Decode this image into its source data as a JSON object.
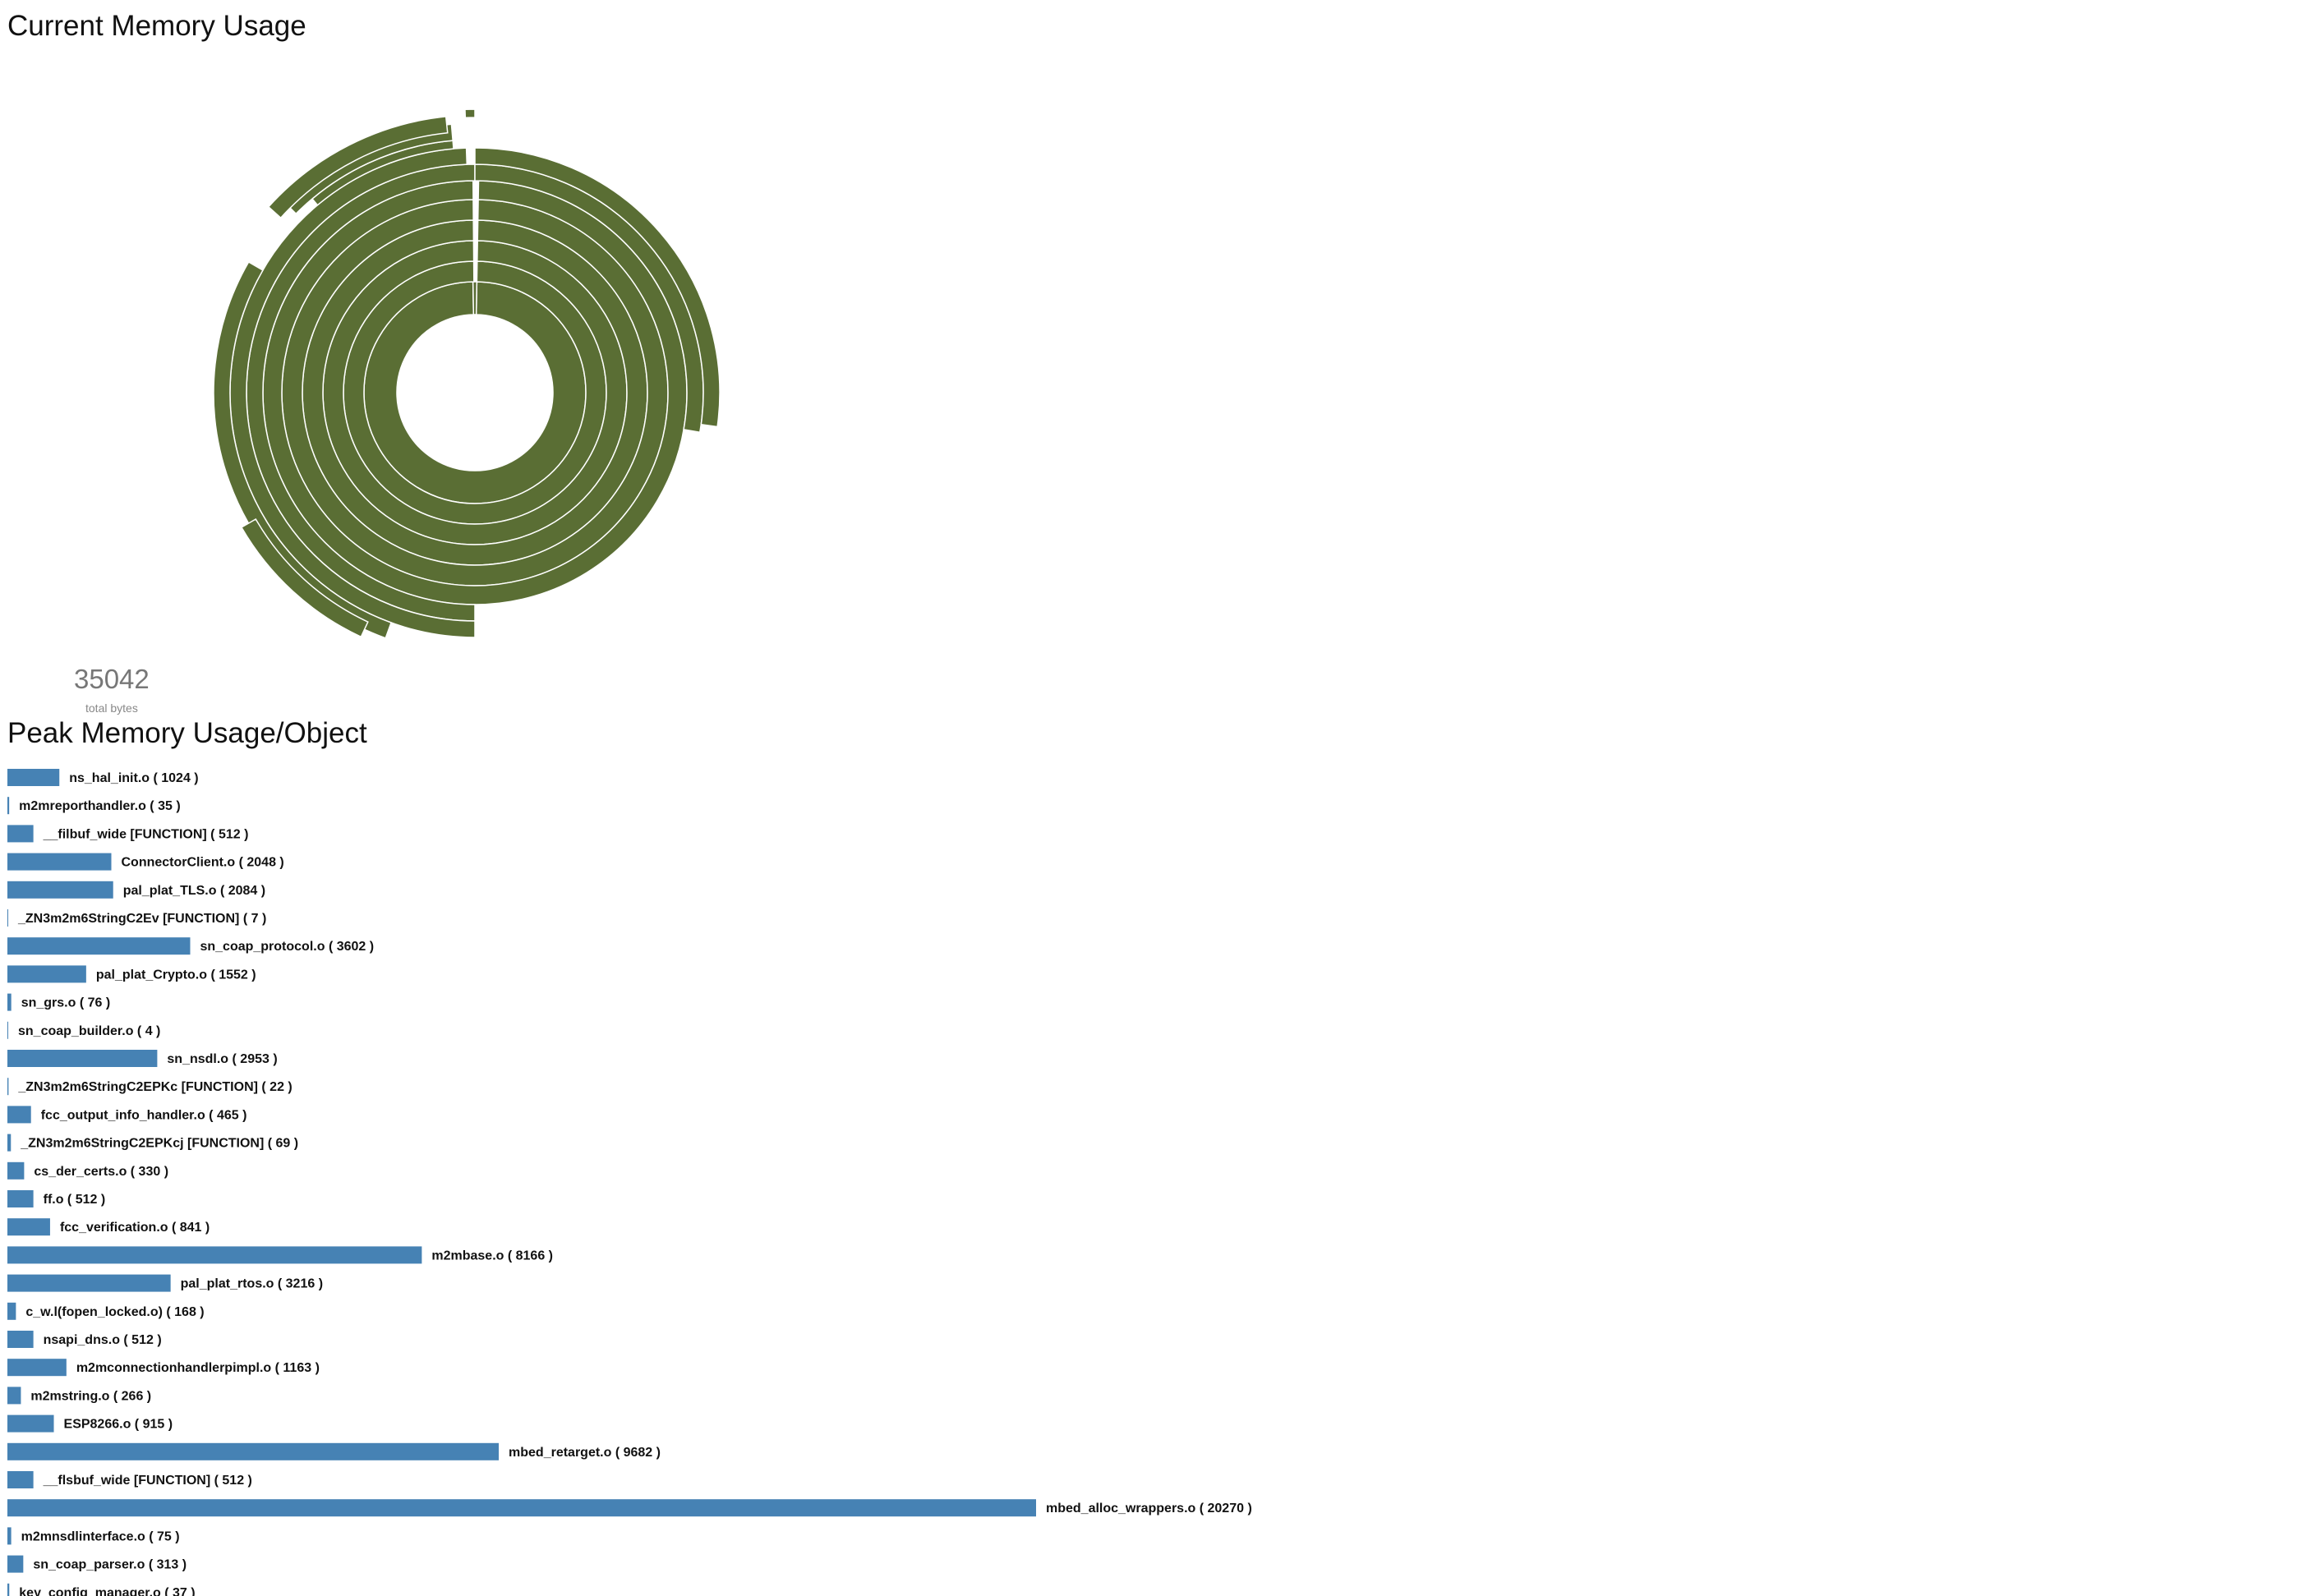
{
  "sections": {
    "current_title": "Current Memory Usage",
    "peak_title": "Peak Memory Usage/Object"
  },
  "summary": {
    "total_value": "35042",
    "total_label": "total bytes"
  },
  "colors": {
    "sunburst_fill": "#5a6e34",
    "bar_fill": "#4682b4"
  },
  "chart_data": [
    {
      "type": "sunburst",
      "title": "Current Memory Usage",
      "total": 35042,
      "note": "arc labels not printed"
    },
    {
      "type": "bar",
      "orientation": "horizontal",
      "title": "Peak Memory Usage/Object",
      "categories": [
        "ns_hal_init.o",
        "m2mreporthandler.o",
        "__filbuf_wide [FUNCTION]",
        "ConnectorClient.o",
        "pal_plat_TLS.o",
        "_ZN3m2m6StringC2Ev [FUNCTION]",
        "sn_coap_protocol.o",
        "pal_plat_Crypto.o",
        "sn_grs.o",
        "sn_coap_builder.o",
        "sn_nsdl.o",
        "_ZN3m2m6StringC2EPKc [FUNCTION]",
        "fcc_output_info_handler.o",
        "_ZN3m2m6StringC2EPKcj [FUNCTION]",
        "cs_der_certs.o",
        "ff.o",
        "fcc_verification.o",
        "m2mbase.o",
        "pal_plat_rtos.o",
        "c_w.l(fopen_locked.o)",
        "nsapi_dns.o",
        "m2mconnectionhandlerpimpl.o",
        "m2mstring.o",
        "ESP8266.o",
        "mbed_retarget.o",
        "__flsbuf_wide [FUNCTION]",
        "mbed_alloc_wrappers.o",
        "m2mnsdlinterface.o",
        "sn_coap_parser.o",
        "key_config_manager.o"
      ],
      "values": [
        1024,
        35,
        512,
        2048,
        2084,
        7,
        3602,
        1552,
        76,
        4,
        2953,
        22,
        465,
        69,
        330,
        512,
        841,
        8166,
        3216,
        168,
        512,
        1163,
        266,
        915,
        9682,
        512,
        20270,
        75,
        313,
        37
      ]
    }
  ]
}
